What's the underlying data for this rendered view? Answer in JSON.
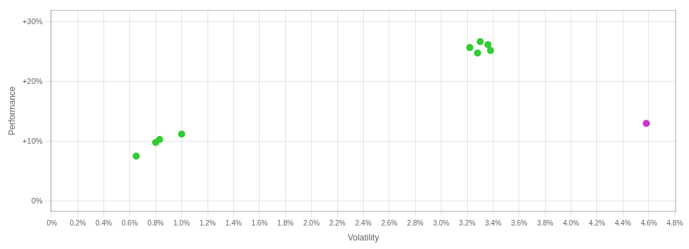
{
  "chart_data": {
    "type": "scatter",
    "xlabel": "Volatility",
    "ylabel": "Performance",
    "series": [
      {
        "color": "#33cc33",
        "marker": "circle",
        "x": [
          0.0065,
          0.008,
          0.0083,
          0.01,
          0.0322,
          0.033,
          0.0336,
          0.0338,
          0.0328
        ],
        "values": [
          0.075,
          0.098,
          0.103,
          0.112,
          0.257,
          0.267,
          0.262,
          0.252,
          0.248
        ]
      },
      {
        "color": "#cc33cc",
        "marker": "circle",
        "x": [
          0.0458
        ],
        "values": [
          0.13
        ]
      }
    ],
    "xlim": [
      -0.0001,
      0.0481
    ],
    "xticks": [
      {
        "value": 0.0,
        "label": "0%"
      },
      {
        "value": 0.002,
        "label": "0.2%"
      },
      {
        "value": 0.004,
        "label": "0.4%"
      },
      {
        "value": 0.006,
        "label": "0.6%"
      },
      {
        "value": 0.008,
        "label": "0.8%"
      },
      {
        "value": 0.01,
        "label": "1.0%"
      },
      {
        "value": 0.012,
        "label": "1.2%"
      },
      {
        "value": 0.014,
        "label": "1.4%"
      },
      {
        "value": 0.016,
        "label": "1.6%"
      },
      {
        "value": 0.018,
        "label": "1.8%"
      },
      {
        "value": 0.02,
        "label": "2.0%"
      },
      {
        "value": 0.022,
        "label": "2.2%"
      },
      {
        "value": 0.024,
        "label": "2.4%"
      },
      {
        "value": 0.026,
        "label": "2.6%"
      },
      {
        "value": 0.028,
        "label": "2.8%"
      },
      {
        "value": 0.03,
        "label": "3.0%"
      },
      {
        "value": 0.032,
        "label": "3.2%"
      },
      {
        "value": 0.034,
        "label": "3.4%"
      },
      {
        "value": 0.036,
        "label": "3.6%"
      },
      {
        "value": 0.038,
        "label": "3.8%"
      },
      {
        "value": 0.04,
        "label": "4.0%"
      },
      {
        "value": 0.042,
        "label": "4.2%"
      },
      {
        "value": 0.044,
        "label": "4.4%"
      },
      {
        "value": 0.046,
        "label": "4.6%"
      },
      {
        "value": 0.048,
        "label": "4.8%"
      }
    ],
    "ylim": [
      -0.018,
      0.32
    ],
    "yticks": [
      {
        "value": 0.0,
        "label": "0%"
      },
      {
        "value": 0.1,
        "label": "+10%"
      },
      {
        "value": 0.2,
        "label": "+20%"
      },
      {
        "value": 0.3,
        "label": "+30%"
      }
    ],
    "grid": true
  }
}
